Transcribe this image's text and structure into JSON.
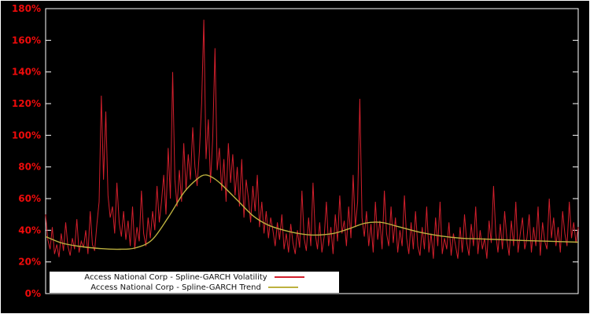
{
  "chart_data": {
    "type": "line",
    "title": "",
    "xlabel": "",
    "ylabel": "",
    "ylim": [
      0,
      180
    ],
    "y_tick_step": 20,
    "y_tick_suffix": "%",
    "grid": false,
    "legend_position": "bottom-left-inside",
    "background_color": "#000000",
    "frame_color": "#ffffff",
    "axis_label_color": "#ee0b0b",
    "series": [
      {
        "name": "Access National Corp - Spline-GARCH Volatility",
        "color": "#d21f2c",
        "style": "noisy-line",
        "values_percent": [
          50,
          34,
          28,
          42,
          25,
          31,
          23,
          38,
          27,
          45,
          30,
          24,
          35,
          28,
          47,
          26,
          33,
          29,
          40,
          25,
          52,
          31,
          27,
          44,
          58,
          125,
          72,
          115,
          62,
          48,
          55,
          38,
          70,
          45,
          36,
          52,
          34,
          46,
          30,
          55,
          28,
          42,
          33,
          65,
          38,
          30,
          48,
          35,
          52,
          40,
          68,
          45,
          58,
          75,
          50,
          92,
          60,
          140,
          72,
          55,
          78,
          58,
          95,
          65,
          88,
          72,
          105,
          80,
          68,
          90,
          120,
          173,
          85,
          110,
          70,
          98,
          155,
          78,
          92,
          65,
          85,
          58,
          95,
          70,
          88,
          62,
          80,
          55,
          85,
          48,
          72,
          60,
          45,
          68,
          52,
          75,
          42,
          58,
          38,
          52,
          35,
          48,
          40,
          30,
          45,
          34,
          50,
          28,
          38,
          26,
          44,
          32,
          25,
          40,
          29,
          65,
          35,
          27,
          48,
          30,
          70,
          38,
          28,
          45,
          26,
          36,
          58,
          30,
          42,
          25,
          50,
          33,
          62,
          38,
          46,
          30,
          55,
          35,
          75,
          42,
          58,
          123,
          48,
          36,
          52,
          30,
          44,
          26,
          58,
          34,
          46,
          28,
          65,
          38,
          30,
          55,
          32,
          48,
          26,
          40,
          30,
          62,
          35,
          25,
          45,
          28,
          52,
          30,
          24,
          42,
          28,
          55,
          26,
          38,
          22,
          48,
          30,
          58,
          25,
          35,
          28,
          45,
          24,
          38,
          30,
          22,
          42,
          26,
          50,
          32,
          24,
          44,
          30,
          55,
          25,
          40,
          28,
          35,
          22,
          46,
          32,
          68,
          38,
          26,
          44,
          28,
          52,
          34,
          24,
          46,
          30,
          58,
          26,
          38,
          48,
          28,
          35,
          50,
          26,
          42,
          30,
          55,
          24,
          45,
          33,
          28,
          60,
          35,
          48,
          30,
          42,
          26,
          52,
          38,
          30,
          58,
          35,
          45,
          32,
          42
        ]
      },
      {
        "name": "Access National Corp - Spline-GARCH Trend",
        "color": "#bdb13f",
        "style": "smooth-line",
        "points": [
          [
            0.0,
            36
          ],
          [
            0.03,
            32
          ],
          [
            0.06,
            30
          ],
          [
            0.1,
            28.5
          ],
          [
            0.14,
            28
          ],
          [
            0.17,
            29
          ],
          [
            0.2,
            34
          ],
          [
            0.23,
            48
          ],
          [
            0.26,
            64
          ],
          [
            0.285,
            72.5
          ],
          [
            0.3,
            75
          ],
          [
            0.315,
            73
          ],
          [
            0.33,
            69
          ],
          [
            0.36,
            59
          ],
          [
            0.39,
            49
          ],
          [
            0.42,
            43
          ],
          [
            0.46,
            39
          ],
          [
            0.5,
            37
          ],
          [
            0.54,
            38
          ],
          [
            0.57,
            41
          ],
          [
            0.6,
            44.5
          ],
          [
            0.63,
            45
          ],
          [
            0.66,
            42.5
          ],
          [
            0.7,
            39
          ],
          [
            0.74,
            36.5
          ],
          [
            0.78,
            35
          ],
          [
            0.82,
            34.5
          ],
          [
            0.86,
            34
          ],
          [
            0.9,
            33.5
          ],
          [
            0.95,
            33
          ],
          [
            1.0,
            32.5
          ]
        ]
      }
    ],
    "y_tick_labels": [
      "0%",
      "20%",
      "40%",
      "60%",
      "80%",
      "100%",
      "120%",
      "140%",
      "160%",
      "180%"
    ]
  }
}
